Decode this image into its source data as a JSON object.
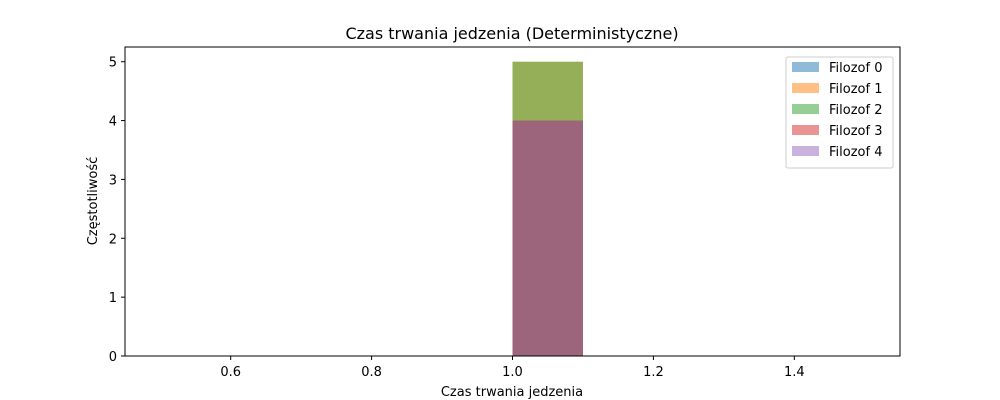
{
  "chart_data": {
    "type": "bar",
    "title": "Czas trwania jedzenia (Deterministyczne)",
    "xlabel": "Czas trwania jedzenia",
    "ylabel": "Częstotliwość",
    "xlim": [
      0.45,
      1.55
    ],
    "ylim": [
      0,
      5.25
    ],
    "xticks": [
      0.6,
      0.8,
      1.0,
      1.2,
      1.4
    ],
    "xtick_labels": [
      "0.6",
      "0.8",
      "1.0",
      "1.2",
      "1.4"
    ],
    "yticks": [
      0,
      1,
      2,
      3,
      4,
      5
    ],
    "ytick_labels": [
      "0",
      "1",
      "2",
      "3",
      "4",
      "5"
    ],
    "grid": false,
    "legend_position": "top-right",
    "bin_range": [
      1.0,
      1.1
    ],
    "series": [
      {
        "name": "Filozof 0",
        "color": "#1f77b4",
        "value": 4
      },
      {
        "name": "Filozof 1",
        "color": "#ff7f0e",
        "value": 5
      },
      {
        "name": "Filozof 2",
        "color": "#2ca02c",
        "value": 5
      },
      {
        "name": "Filozof 3",
        "color": "#d62728",
        "value": 4
      },
      {
        "name": "Filozof 4",
        "color": "#9467bd",
        "value": 4
      }
    ],
    "opacity": 0.5
  }
}
